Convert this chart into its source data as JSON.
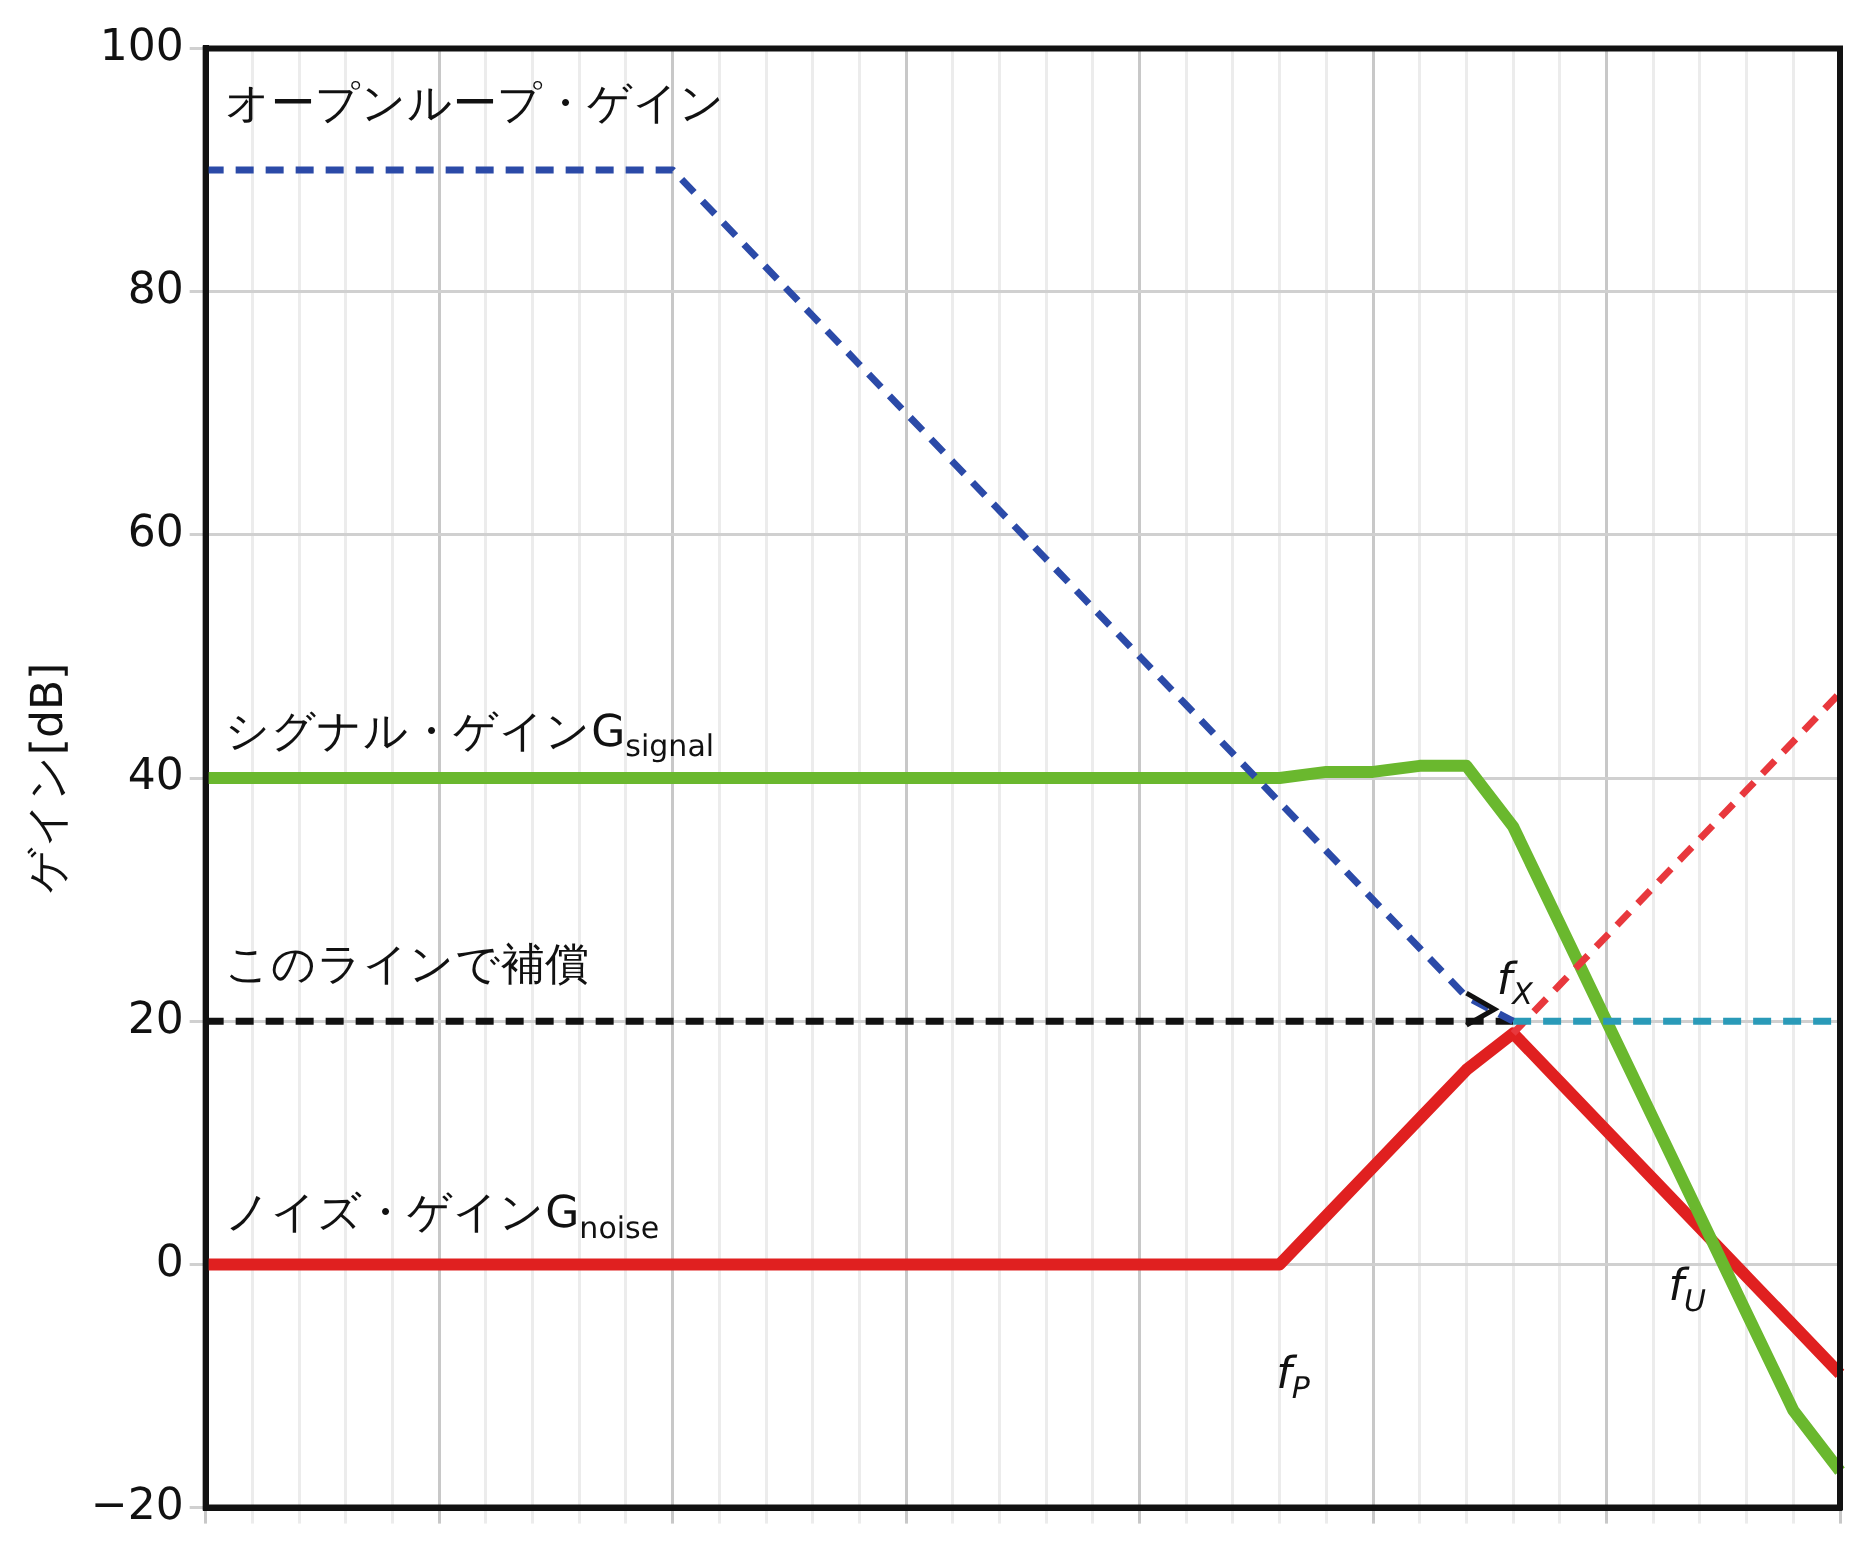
{
  "chart_data": {
    "type": "line",
    "ylabel": "ゲイン[dB]",
    "categories": [
      null,
      null,
      null,
      null,
      null,
      null,
      null,
      null,
      null,
      null,
      null,
      null,
      null,
      null,
      null,
      null,
      null,
      null,
      null,
      null,
      null,
      null,
      null,
      null,
      null,
      null,
      null,
      null,
      null,
      null,
      null,
      null,
      null,
      null,
      null,
      null
    ],
    "series": [
      {
        "color": "#2b4aa8",
        "line_style": "dashed",
        "values": [
          90,
          90,
          90,
          90,
          90,
          90,
          90,
          90,
          90,
          90,
          90,
          86,
          82,
          78,
          74,
          70,
          66,
          62,
          58,
          54,
          50,
          46,
          42,
          38,
          34,
          30,
          26,
          22,
          20,
          null,
          null,
          null,
          null,
          null,
          null,
          null
        ]
      },
      {
        "color": "#2a9ab8",
        "line_style": "dashed",
        "values": [
          null,
          null,
          null,
          null,
          null,
          null,
          null,
          null,
          null,
          null,
          null,
          null,
          null,
          null,
          null,
          null,
          null,
          null,
          null,
          null,
          null,
          null,
          null,
          null,
          null,
          null,
          null,
          null,
          20,
          20,
          20,
          20,
          20,
          20,
          20,
          20
        ]
      },
      {
        "color": "#111111",
        "line_style": "dashed",
        "values": [
          20,
          20,
          20,
          20,
          20,
          20,
          20,
          20,
          20,
          20,
          20,
          20,
          20,
          20,
          20,
          20,
          20,
          20,
          20,
          20,
          20,
          20,
          20,
          20,
          20,
          20,
          20,
          20,
          20,
          null,
          null,
          null,
          null,
          null,
          null,
          null
        ]
      },
      {
        "color": "#e8383d",
        "line_style": "dashed",
        "values": [
          null,
          null,
          null,
          null,
          null,
          null,
          null,
          null,
          null,
          null,
          null,
          null,
          null,
          null,
          null,
          null,
          null,
          null,
          null,
          null,
          null,
          null,
          null,
          null,
          null,
          null,
          null,
          null,
          19,
          23,
          27,
          31,
          35,
          39,
          43,
          47
        ]
      },
      {
        "color": "#6ab82e",
        "line_style": "solid",
        "values": [
          40,
          40,
          40,
          40,
          40,
          40,
          40,
          40,
          40,
          40,
          40,
          40,
          40,
          40,
          40,
          40,
          40,
          40,
          40,
          40,
          40,
          40,
          40,
          40,
          40.5,
          40.5,
          41,
          41,
          36,
          28,
          20,
          12,
          4,
          -4,
          -12,
          -17
        ]
      },
      {
        "color": "#e02020",
        "line_style": "solid",
        "values": [
          0,
          0,
          0,
          0,
          0,
          0,
          0,
          0,
          0,
          0,
          0,
          0,
          0,
          0,
          0,
          0,
          0,
          0,
          0,
          0,
          0,
          0,
          0,
          0,
          4,
          8,
          12,
          16,
          19,
          15,
          11,
          7,
          3,
          -1,
          -5,
          -9
        ]
      }
    ],
    "ylim": [
      -20,
      100
    ],
    "yticks": [
      {
        "value": -20,
        "label": "−20"
      },
      0,
      20,
      40,
      60,
      80,
      100
    ],
    "grid": true,
    "legend": false,
    "tick_labels": "y",
    "annotations": [
      "オープンループ・ゲイン",
      "シグナル・ゲインG$_{signal}$",
      "このラインで補償",
      "ノイズ・ゲインG$_{noise}$",
      "f$_{P}$",
      "f$_{X}$",
      "f$_{U}$"
    ]
  }
}
